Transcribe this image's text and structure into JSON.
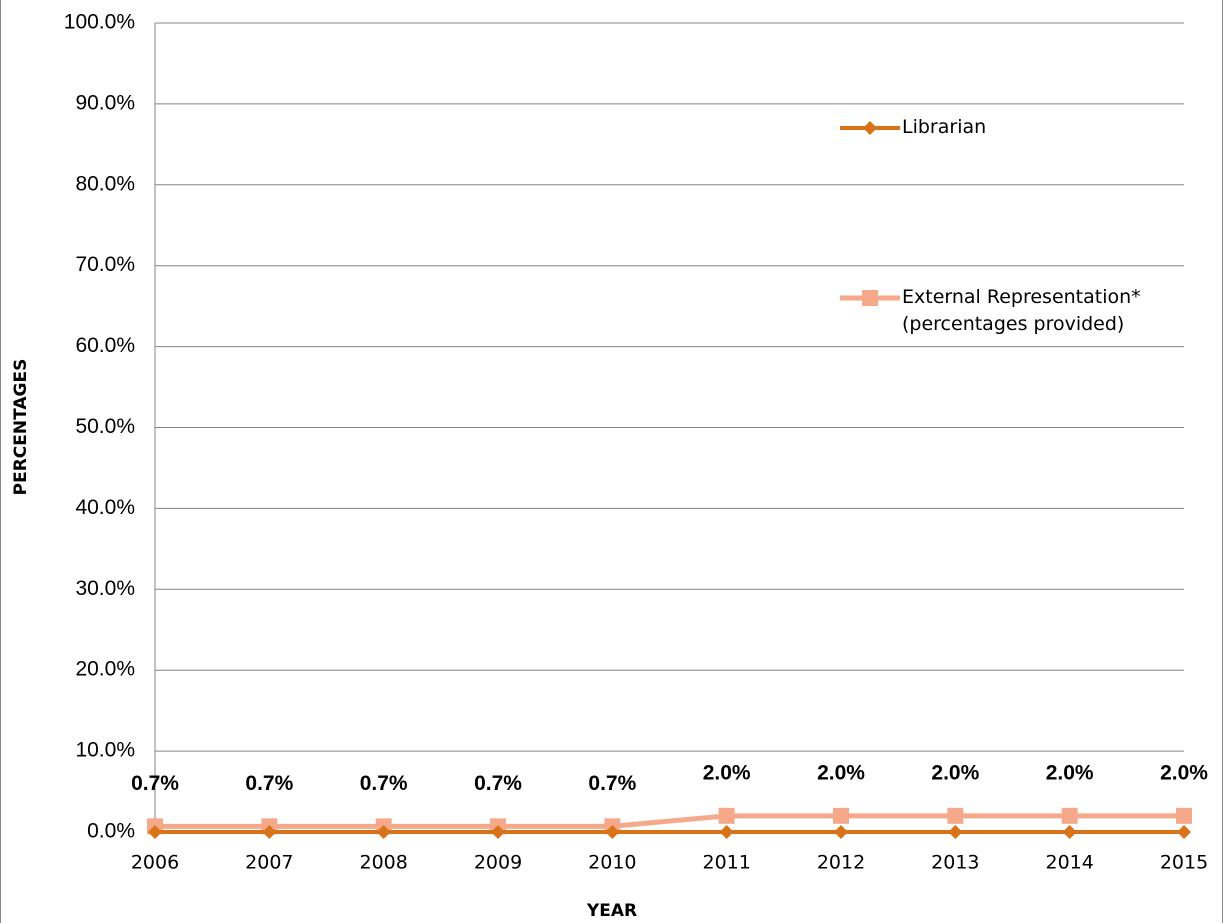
{
  "chart_data": {
    "type": "line",
    "x_label": "YEAR",
    "y_label": "PERCENTAGES",
    "categories": [
      "2006",
      "2007",
      "2008",
      "2009",
      "2010",
      "2011",
      "2012",
      "2013",
      "2014",
      "2015"
    ],
    "series": [
      {
        "name": "Librarian",
        "color": "#d9731a",
        "marker": "diamond",
        "values": [
          0,
          0,
          0,
          0,
          0,
          0,
          0,
          0,
          0,
          0
        ]
      },
      {
        "name": "External Representation* (percentages provided)",
        "color": "#f5a98a",
        "marker": "square",
        "values": [
          0.7,
          0.7,
          0.7,
          0.7,
          0.7,
          2.0,
          2.0,
          2.0,
          2.0,
          2.0
        ],
        "value_labels": [
          "0.7%",
          "0.7%",
          "0.7%",
          "0.7%",
          "0.7%",
          "2.0%",
          "2.0%",
          "2.0%",
          "2.0%",
          "2.0%"
        ]
      }
    ],
    "ylim": [
      0,
      100
    ],
    "yticks": [
      {
        "value": 0,
        "label": "0.0%"
      },
      {
        "value": 10,
        "label": "10.0%"
      },
      {
        "value": 20,
        "label": "20.0%"
      },
      {
        "value": 30,
        "label": "30.0%"
      },
      {
        "value": 40,
        "label": "40.0%"
      },
      {
        "value": 50,
        "label": "50.0%"
      },
      {
        "value": 60,
        "label": "60.0%"
      },
      {
        "value": 70,
        "label": "70.0%"
      },
      {
        "value": 80,
        "label": "80.0%"
      },
      {
        "value": 90,
        "label": "90.0%"
      },
      {
        "value": 100,
        "label": "100.0%"
      }
    ],
    "grid": true
  }
}
